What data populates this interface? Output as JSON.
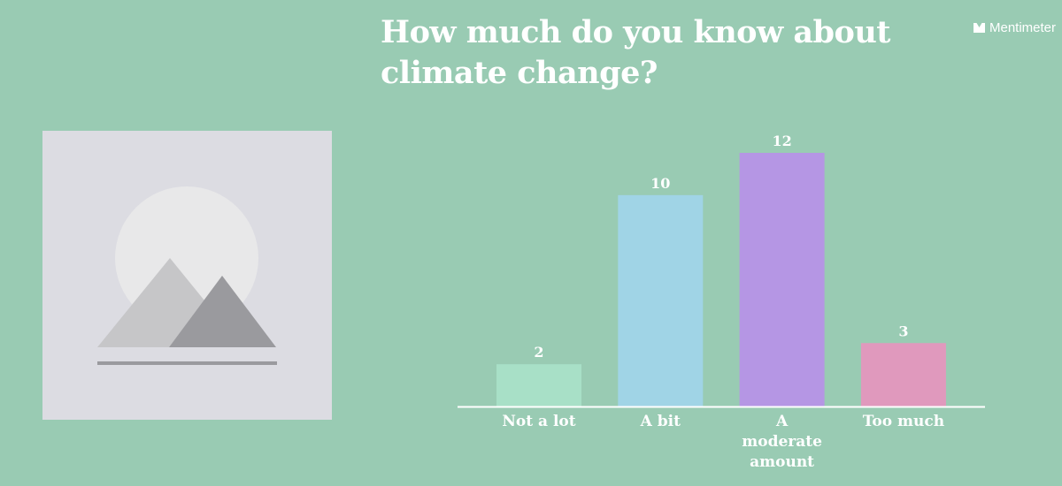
{
  "header": {
    "title": "How much do you know about climate change?",
    "brand": "Mentimeter"
  },
  "image_placeholder": {
    "icon": "image-placeholder-icon"
  },
  "colors": {
    "background": "#99cbb3",
    "text": "#ffffff",
    "axis": "#ffffff"
  },
  "chart_data": {
    "type": "bar",
    "title": "How much do you know about climate change?",
    "categories": [
      "Not a lot",
      "A bit",
      "A moderate amount",
      "Too much"
    ],
    "category_lines": [
      [
        "Not a lot"
      ],
      [
        "A bit"
      ],
      [
        "A",
        "moderate",
        "amount"
      ],
      [
        "Too much"
      ]
    ],
    "values": [
      2,
      10,
      12,
      3
    ],
    "value_labels": [
      "2",
      "10",
      "12",
      "3"
    ],
    "bar_colors": [
      "#a8e0c7",
      "#a0d4e6",
      "#b596e4",
      "#e099bd"
    ],
    "xlabel": "",
    "ylabel": "",
    "ylim": [
      0,
      12
    ],
    "grid": false,
    "legend": "none"
  }
}
